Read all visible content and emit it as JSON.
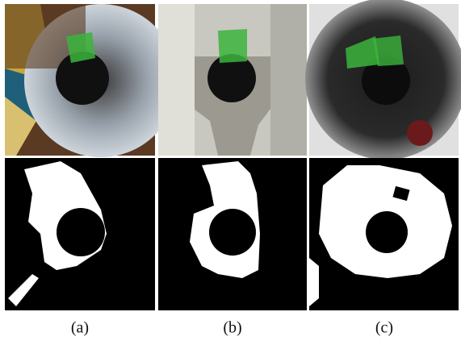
{
  "captions": [
    "(a)",
    "(b)",
    "(c)"
  ]
}
